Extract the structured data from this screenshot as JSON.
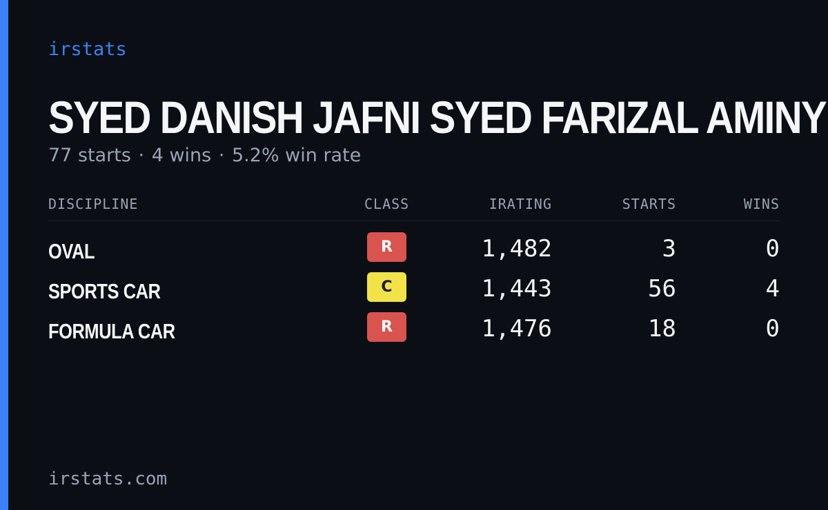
{
  "brand": "irstats",
  "driver": {
    "name": "SYED DANISH JAFNI SYED FARIZAL AMINY",
    "starts_text": "77 starts",
    "wins_text": "4 wins",
    "win_rate_text": "5.2% win rate",
    "separator": "·"
  },
  "table": {
    "headers": {
      "discipline": "DISCIPLINE",
      "class": "CLASS",
      "irating": "IRATING",
      "starts": "STARTS",
      "wins": "WINS"
    },
    "rows": [
      {
        "discipline": "OVAL",
        "class": "R",
        "class_bg": "#d9534f",
        "class_fg": "#ffffff",
        "irating": "1,482",
        "starts": "3",
        "wins": "0"
      },
      {
        "discipline": "SPORTS CAR",
        "class": "C",
        "class_bg": "#f2e24a",
        "class_fg": "#1b1b1b",
        "irating": "1,443",
        "starts": "56",
        "wins": "4"
      },
      {
        "discipline": "FORMULA CAR",
        "class": "R",
        "class_bg": "#d9534f",
        "class_fg": "#ffffff",
        "irating": "1,476",
        "starts": "18",
        "wins": "0"
      }
    ]
  },
  "footer": "irstats.com",
  "colors": {
    "accent": "#3b82f6",
    "background": "#0b0e14",
    "text_primary": "#f5f6f8",
    "text_muted": "#9aa3b5"
  }
}
